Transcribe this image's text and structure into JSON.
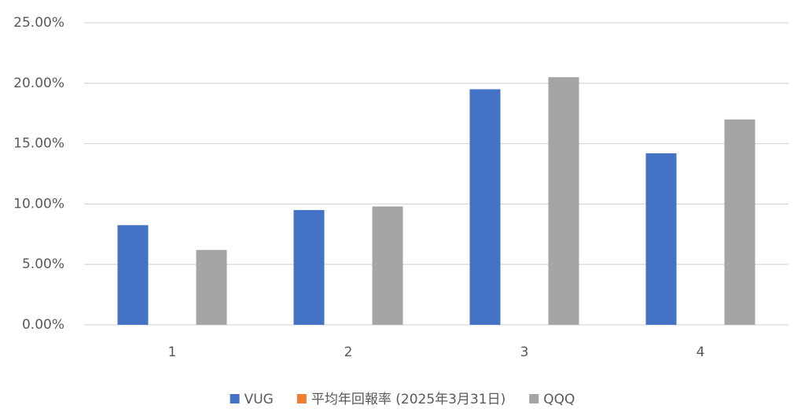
{
  "chart_data": {
    "type": "bar",
    "categories": [
      "1",
      "2",
      "3",
      "4"
    ],
    "series": [
      {
        "name": "VUG",
        "color": "#4472c4",
        "values": [
          8.25,
          9.5,
          19.5,
          14.2
        ]
      },
      {
        "name": "平均年回報率 (2025年3月31日)",
        "color": "#ed7d31",
        "values": [
          null,
          null,
          null,
          null
        ]
      },
      {
        "name": "QQQ",
        "color": "#a5a5a5",
        "values": [
          6.2,
          9.8,
          20.5,
          17.0
        ]
      }
    ],
    "ylim": [
      0,
      25
    ],
    "yticks": [
      {
        "value": 0,
        "label": "0.00%"
      },
      {
        "value": 5,
        "label": "5.00%"
      },
      {
        "value": 10,
        "label": "10.00%"
      },
      {
        "value": 15,
        "label": "15.00%"
      },
      {
        "value": 20,
        "label": "20.00%"
      },
      {
        "value": 25,
        "label": "25.00%"
      }
    ],
    "grid": true,
    "legend": "bottom"
  }
}
